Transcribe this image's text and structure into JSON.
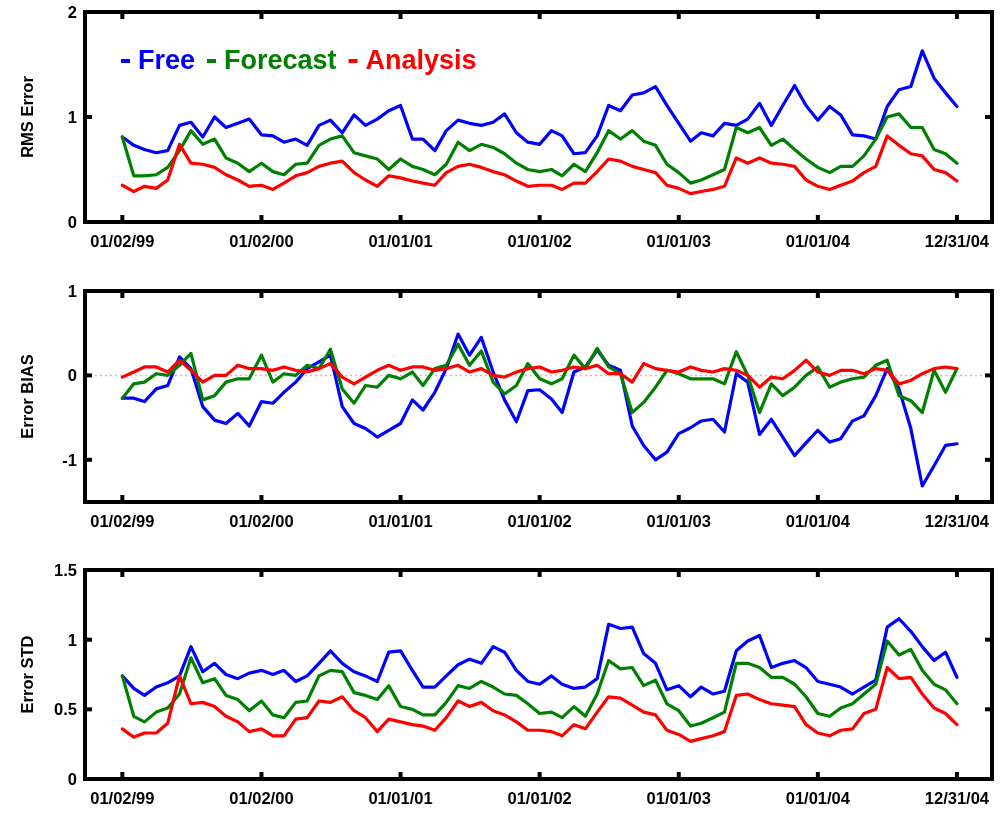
{
  "chart_data": [
    {
      "type": "line",
      "ylabel": "RMS Error",
      "legend": "top left",
      "x": [
        "1999-01-02",
        "1999-02-01",
        "1999-03-01",
        "1999-04-01",
        "1999-05-01",
        "1999-06-01",
        "1999-07-01",
        "1999-08-01",
        "1999-09-01",
        "1999-10-01",
        "1999-11-01",
        "1999-12-01",
        "2000-01-02",
        "2000-02-01",
        "2000-03-01",
        "2000-04-01",
        "2000-05-01",
        "2000-06-01",
        "2000-07-01",
        "2000-08-01",
        "2000-09-01",
        "2000-10-01",
        "2000-11-01",
        "2000-12-01",
        "2001-01-01",
        "2001-02-01",
        "2001-03-01",
        "2001-04-01",
        "2001-05-01",
        "2001-06-01",
        "2001-07-01",
        "2001-08-01",
        "2001-09-01",
        "2001-10-01",
        "2001-11-01",
        "2001-12-01",
        "2002-01-01",
        "2002-02-01",
        "2002-03-01",
        "2002-04-01",
        "2002-05-01",
        "2002-06-01",
        "2002-07-01",
        "2002-08-01",
        "2002-09-01",
        "2002-10-01",
        "2002-11-01",
        "2002-12-01",
        "2003-01-01",
        "2003-02-01",
        "2003-03-01",
        "2003-04-01",
        "2003-05-01",
        "2003-06-01",
        "2003-07-01",
        "2003-08-01",
        "2003-09-01",
        "2003-10-01",
        "2003-11-01",
        "2003-12-01",
        "2004-01-01",
        "2004-02-01",
        "2004-03-01",
        "2004-04-01",
        "2004-05-01",
        "2004-06-01",
        "2004-07-01",
        "2004-08-01",
        "2004-09-01",
        "2004-10-01",
        "2004-11-01",
        "2004-12-01",
        "2004-12-31"
      ],
      "xlim": [
        "1998-09-26",
        "2005-04-02"
      ],
      "xticks": [
        {
          "value": "1999-01-02",
          "label": "01/02/99"
        },
        {
          "value": "2000-01-02",
          "label": "01/02/00"
        },
        {
          "value": "2001-01-01",
          "label": "01/01/01"
        },
        {
          "value": "2002-01-01",
          "label": "01/01/02"
        },
        {
          "value": "2003-01-01",
          "label": "01/01/03"
        },
        {
          "value": "2004-01-01",
          "label": "01/01/04"
        },
        {
          "value": "2004-12-31",
          "label": "12/31/04"
        }
      ],
      "ylim": [
        0,
        2
      ],
      "yticks": [
        0,
        1,
        2
      ],
      "series": [
        {
          "name": "Free",
          "color": "#0000ff",
          "values": [
            0.81,
            0.73,
            0.69,
            0.66,
            0.68,
            0.92,
            0.95,
            0.81,
            1.0,
            0.9,
            0.94,
            0.98,
            0.83,
            0.82,
            0.76,
            0.79,
            0.73,
            0.92,
            0.97,
            0.85,
            1.02,
            0.92,
            0.98,
            1.06,
            1.11,
            0.79,
            0.79,
            0.68,
            0.87,
            0.97,
            0.94,
            0.92,
            0.95,
            1.03,
            0.85,
            0.76,
            0.74,
            0.87,
            0.82,
            0.65,
            0.66,
            0.82,
            1.11,
            1.06,
            1.21,
            1.23,
            1.29,
            1.11,
            0.94,
            0.77,
            0.85,
            0.82,
            0.94,
            0.92,
            0.98,
            1.13,
            0.92,
            1.11,
            1.3,
            1.11,
            0.97,
            1.1,
            1.02,
            0.83,
            0.82,
            0.79,
            1.1,
            1.26,
            1.29,
            1.63,
            1.37,
            1.23,
            1.1
          ]
        },
        {
          "name": "Forecast",
          "color": "#008000",
          "values": [
            0.81,
            0.44,
            0.44,
            0.45,
            0.52,
            0.68,
            0.87,
            0.74,
            0.79,
            0.61,
            0.56,
            0.48,
            0.56,
            0.48,
            0.45,
            0.55,
            0.56,
            0.73,
            0.79,
            0.82,
            0.66,
            0.63,
            0.6,
            0.5,
            0.6,
            0.53,
            0.5,
            0.45,
            0.55,
            0.76,
            0.68,
            0.74,
            0.71,
            0.65,
            0.56,
            0.5,
            0.48,
            0.5,
            0.44,
            0.55,
            0.48,
            0.66,
            0.87,
            0.79,
            0.87,
            0.77,
            0.73,
            0.55,
            0.47,
            0.37,
            0.4,
            0.45,
            0.5,
            0.9,
            0.85,
            0.9,
            0.73,
            0.79,
            0.69,
            0.6,
            0.52,
            0.47,
            0.53,
            0.53,
            0.63,
            0.79,
            1.0,
            1.03,
            0.9,
            0.9,
            0.69,
            0.65,
            0.56
          ]
        },
        {
          "name": "Analysis",
          "color": "#ff0000",
          "values": [
            0.35,
            0.29,
            0.34,
            0.32,
            0.4,
            0.74,
            0.56,
            0.55,
            0.52,
            0.45,
            0.4,
            0.34,
            0.35,
            0.31,
            0.37,
            0.44,
            0.47,
            0.53,
            0.56,
            0.58,
            0.47,
            0.4,
            0.34,
            0.44,
            0.42,
            0.39,
            0.37,
            0.35,
            0.47,
            0.53,
            0.55,
            0.52,
            0.48,
            0.45,
            0.39,
            0.34,
            0.35,
            0.35,
            0.31,
            0.37,
            0.37,
            0.48,
            0.6,
            0.58,
            0.53,
            0.5,
            0.47,
            0.35,
            0.32,
            0.27,
            0.29,
            0.31,
            0.34,
            0.61,
            0.56,
            0.61,
            0.56,
            0.55,
            0.53,
            0.4,
            0.34,
            0.31,
            0.35,
            0.39,
            0.47,
            0.53,
            0.82,
            0.73,
            0.65,
            0.63,
            0.5,
            0.47,
            0.39
          ]
        }
      ]
    },
    {
      "type": "line",
      "ylabel": "Error BIAS",
      "x": [
        "1999-01-02",
        "1999-02-01",
        "1999-03-01",
        "1999-04-01",
        "1999-05-01",
        "1999-06-01",
        "1999-07-01",
        "1999-08-01",
        "1999-09-01",
        "1999-10-01",
        "1999-11-01",
        "1999-12-01",
        "2000-01-02",
        "2000-02-01",
        "2000-03-01",
        "2000-04-01",
        "2000-05-01",
        "2000-06-01",
        "2000-07-01",
        "2000-08-01",
        "2000-09-01",
        "2000-10-01",
        "2000-11-01",
        "2000-12-01",
        "2001-01-01",
        "2001-02-01",
        "2001-03-01",
        "2001-04-01",
        "2001-05-01",
        "2001-06-01",
        "2001-07-01",
        "2001-08-01",
        "2001-09-01",
        "2001-10-01",
        "2001-11-01",
        "2001-12-01",
        "2002-01-01",
        "2002-02-01",
        "2002-03-01",
        "2002-04-01",
        "2002-05-01",
        "2002-06-01",
        "2002-07-01",
        "2002-08-01",
        "2002-09-01",
        "2002-10-01",
        "2002-11-01",
        "2002-12-01",
        "2003-01-01",
        "2003-02-01",
        "2003-03-01",
        "2003-04-01",
        "2003-05-01",
        "2003-06-01",
        "2003-07-01",
        "2003-08-01",
        "2003-09-01",
        "2003-10-01",
        "2003-11-01",
        "2003-12-01",
        "2004-01-01",
        "2004-02-01",
        "2004-03-01",
        "2004-04-01",
        "2004-05-01",
        "2004-06-01",
        "2004-07-01",
        "2004-08-01",
        "2004-09-01",
        "2004-10-01",
        "2004-11-01",
        "2004-12-01",
        "2004-12-31"
      ],
      "xlim": [
        "1998-09-26",
        "2005-04-02"
      ],
      "xticks": [
        {
          "value": "1999-01-02",
          "label": "01/02/99"
        },
        {
          "value": "2000-01-02",
          "label": "01/02/00"
        },
        {
          "value": "2001-01-01",
          "label": "01/01/01"
        },
        {
          "value": "2002-01-01",
          "label": "01/01/02"
        },
        {
          "value": "2003-01-01",
          "label": "01/01/03"
        },
        {
          "value": "2004-01-01",
          "label": "01/01/04"
        },
        {
          "value": "2004-12-31",
          "label": "12/31/04"
        }
      ],
      "ylim": [
        -1.5,
        1
      ],
      "yticks": [
        -1,
        0,
        1
      ],
      "ref_lines": [
        {
          "axis": "y",
          "value": 0,
          "color": "#c0c0c0",
          "line_style": "dotted"
        }
      ],
      "series": [
        {
          "color": "#0000ff",
          "values": [
            -0.27,
            -0.27,
            -0.31,
            -0.16,
            -0.12,
            0.22,
            0.08,
            -0.37,
            -0.53,
            -0.57,
            -0.45,
            -0.6,
            -0.31,
            -0.33,
            -0.2,
            -0.08,
            0.08,
            0.16,
            0.24,
            -0.37,
            -0.57,
            -0.63,
            -0.73,
            -0.65,
            -0.57,
            -0.29,
            -0.41,
            -0.2,
            0.08,
            0.49,
            0.24,
            0.45,
            0.04,
            -0.29,
            -0.55,
            -0.18,
            -0.17,
            -0.28,
            -0.44,
            0.04,
            0.1,
            0.3,
            0.12,
            0.06,
            -0.6,
            -0.83,
            -1.0,
            -0.91,
            -0.69,
            -0.62,
            -0.54,
            -0.52,
            -0.67,
            0.02,
            -0.08,
            -0.7,
            -0.52,
            -0.73,
            -0.95,
            -0.8,
            -0.65,
            -0.79,
            -0.75,
            -0.54,
            -0.48,
            -0.24,
            0.08,
            -0.16,
            -0.63,
            -1.31,
            -1.07,
            -0.83,
            -0.81
          ]
        },
        {
          "color": "#008000",
          "values": [
            -0.27,
            -0.1,
            -0.08,
            0.02,
            0.0,
            0.12,
            0.26,
            -0.29,
            -0.24,
            -0.08,
            -0.04,
            -0.04,
            0.24,
            -0.08,
            0.02,
            0.0,
            0.12,
            0.08,
            0.31,
            -0.16,
            -0.33,
            -0.12,
            -0.14,
            0.0,
            -0.04,
            0.04,
            -0.12,
            0.08,
            0.12,
            0.37,
            0.12,
            0.29,
            -0.08,
            -0.22,
            -0.12,
            0.14,
            -0.04,
            -0.1,
            -0.04,
            0.24,
            0.08,
            0.32,
            0.1,
            0.02,
            -0.44,
            -0.32,
            -0.14,
            0.06,
            0.02,
            -0.04,
            -0.04,
            -0.04,
            -0.1,
            0.28,
            0.0,
            -0.44,
            -0.1,
            -0.24,
            -0.14,
            0.0,
            0.1,
            -0.14,
            -0.08,
            -0.04,
            -0.02,
            0.12,
            0.18,
            -0.24,
            -0.3,
            -0.44,
            0.06,
            -0.2,
            0.08
          ]
        },
        {
          "color": "#ff0000",
          "values": [
            -0.02,
            0.04,
            0.1,
            0.1,
            0.04,
            0.18,
            0.06,
            -0.08,
            0.0,
            0.0,
            0.12,
            0.08,
            0.08,
            0.06,
            0.1,
            0.06,
            0.04,
            0.08,
            0.14,
            -0.02,
            -0.1,
            -0.02,
            0.06,
            0.12,
            0.06,
            0.1,
            0.1,
            0.06,
            0.08,
            0.12,
            0.04,
            0.08,
            0.0,
            -0.02,
            0.04,
            0.08,
            0.1,
            0.04,
            0.06,
            0.1,
            0.08,
            0.12,
            0.02,
            0.02,
            -0.08,
            0.14,
            0.08,
            0.06,
            0.04,
            0.1,
            0.06,
            0.04,
            0.08,
            0.06,
            0.0,
            -0.14,
            -0.02,
            -0.04,
            0.06,
            0.18,
            0.04,
            0.0,
            0.06,
            0.06,
            0.02,
            0.08,
            0.06,
            -0.1,
            -0.06,
            0.02,
            0.08,
            0.1,
            0.08
          ]
        }
      ]
    },
    {
      "type": "line",
      "ylabel": "Error STD",
      "x": [
        "1999-01-02",
        "1999-02-01",
        "1999-03-01",
        "1999-04-01",
        "1999-05-01",
        "1999-06-01",
        "1999-07-01",
        "1999-08-01",
        "1999-09-01",
        "1999-10-01",
        "1999-11-01",
        "1999-12-01",
        "2000-01-02",
        "2000-02-01",
        "2000-03-01",
        "2000-04-01",
        "2000-05-01",
        "2000-06-01",
        "2000-07-01",
        "2000-08-01",
        "2000-09-01",
        "2000-10-01",
        "2000-11-01",
        "2000-12-01",
        "2001-01-01",
        "2001-02-01",
        "2001-03-01",
        "2001-04-01",
        "2001-05-01",
        "2001-06-01",
        "2001-07-01",
        "2001-08-01",
        "2001-09-01",
        "2001-10-01",
        "2001-11-01",
        "2001-12-01",
        "2002-01-01",
        "2002-02-01",
        "2002-03-01",
        "2002-04-01",
        "2002-05-01",
        "2002-06-01",
        "2002-07-01",
        "2002-08-01",
        "2002-09-01",
        "2002-10-01",
        "2002-11-01",
        "2002-12-01",
        "2003-01-01",
        "2003-02-01",
        "2003-03-01",
        "2003-04-01",
        "2003-05-01",
        "2003-06-01",
        "2003-07-01",
        "2003-08-01",
        "2003-09-01",
        "2003-10-01",
        "2003-11-01",
        "2003-12-01",
        "2004-01-01",
        "2004-02-01",
        "2004-03-01",
        "2004-04-01",
        "2004-05-01",
        "2004-06-01",
        "2004-07-01",
        "2004-08-01",
        "2004-09-01",
        "2004-10-01",
        "2004-11-01",
        "2004-12-01",
        "2004-12-31"
      ],
      "xlim": [
        "1998-09-26",
        "2005-04-02"
      ],
      "xticks": [
        {
          "value": "1999-01-02",
          "label": "01/02/99"
        },
        {
          "value": "2000-01-02",
          "label": "01/02/00"
        },
        {
          "value": "2001-01-01",
          "label": "01/01/01"
        },
        {
          "value": "2002-01-01",
          "label": "01/01/02"
        },
        {
          "value": "2003-01-01",
          "label": "01/01/03"
        },
        {
          "value": "2004-01-01",
          "label": "01/01/04"
        },
        {
          "value": "2004-12-31",
          "label": "12/31/04"
        }
      ],
      "ylim": [
        0,
        1.5
      ],
      "yticks": [
        0,
        0.5,
        1,
        1.5
      ],
      "series": [
        {
          "color": "#0000ff",
          "values": [
            0.74,
            0.65,
            0.6,
            0.66,
            0.69,
            0.74,
            0.95,
            0.77,
            0.83,
            0.75,
            0.72,
            0.76,
            0.78,
            0.75,
            0.78,
            0.7,
            0.74,
            0.83,
            0.92,
            0.83,
            0.77,
            0.74,
            0.7,
            0.91,
            0.92,
            0.78,
            0.66,
            0.66,
            0.74,
            0.82,
            0.86,
            0.83,
            0.95,
            0.91,
            0.78,
            0.7,
            0.68,
            0.74,
            0.68,
            0.65,
            0.66,
            0.72,
            1.11,
            1.08,
            1.09,
            0.9,
            0.83,
            0.64,
            0.67,
            0.59,
            0.66,
            0.61,
            0.63,
            0.92,
            0.99,
            1.03,
            0.8,
            0.83,
            0.85,
            0.8,
            0.7,
            0.68,
            0.66,
            0.61,
            0.66,
            0.71,
            1.09,
            1.15,
            1.06,
            0.95,
            0.85,
            0.91,
            0.73
          ]
        },
        {
          "color": "#008000",
          "values": [
            0.74,
            0.45,
            0.41,
            0.48,
            0.51,
            0.61,
            0.87,
            0.69,
            0.72,
            0.6,
            0.57,
            0.49,
            0.56,
            0.46,
            0.44,
            0.55,
            0.56,
            0.74,
            0.78,
            0.77,
            0.62,
            0.6,
            0.57,
            0.67,
            0.52,
            0.5,
            0.46,
            0.46,
            0.55,
            0.67,
            0.65,
            0.7,
            0.66,
            0.61,
            0.6,
            0.54,
            0.47,
            0.48,
            0.44,
            0.52,
            0.45,
            0.61,
            0.85,
            0.79,
            0.8,
            0.67,
            0.71,
            0.54,
            0.49,
            0.38,
            0.4,
            0.44,
            0.48,
            0.83,
            0.83,
            0.8,
            0.73,
            0.73,
            0.68,
            0.59,
            0.47,
            0.45,
            0.51,
            0.54,
            0.61,
            0.68,
            0.99,
            0.89,
            0.93,
            0.78,
            0.68,
            0.64,
            0.54
          ]
        },
        {
          "color": "#ff0000",
          "values": [
            0.36,
            0.3,
            0.33,
            0.33,
            0.4,
            0.74,
            0.54,
            0.55,
            0.52,
            0.45,
            0.41,
            0.34,
            0.36,
            0.31,
            0.31,
            0.43,
            0.44,
            0.56,
            0.55,
            0.59,
            0.49,
            0.44,
            0.34,
            0.43,
            0.41,
            0.39,
            0.38,
            0.35,
            0.44,
            0.56,
            0.52,
            0.55,
            0.49,
            0.46,
            0.41,
            0.35,
            0.35,
            0.34,
            0.31,
            0.39,
            0.36,
            0.48,
            0.59,
            0.58,
            0.53,
            0.48,
            0.46,
            0.35,
            0.32,
            0.27,
            0.29,
            0.31,
            0.34,
            0.6,
            0.61,
            0.57,
            0.54,
            0.53,
            0.52,
            0.39,
            0.33,
            0.31,
            0.35,
            0.36,
            0.47,
            0.5,
            0.8,
            0.72,
            0.73,
            0.61,
            0.51,
            0.47,
            0.39
          ]
        }
      ]
    }
  ]
}
